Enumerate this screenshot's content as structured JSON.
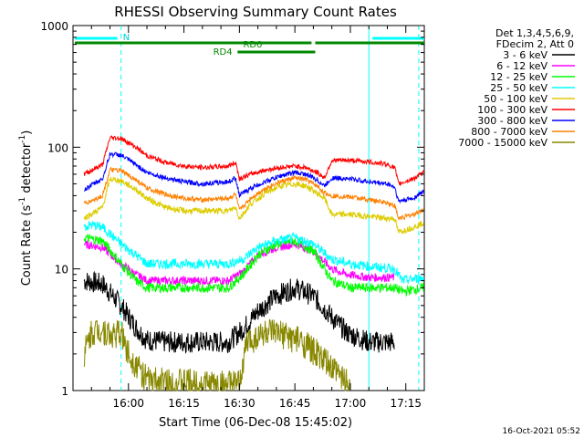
{
  "chart_data": {
    "type": "line",
    "title": "RHESSI Observing Summary Count Rates",
    "xlabel": "Start Time (06-Dec-08 15:45:02)",
    "ylabel_main": "Count Rate (s",
    "ylabel_sup1": "-1",
    "ylabel_mid": " detector",
    "ylabel_sup2": "-1",
    "ylabel_end": ")",
    "yscale": "log",
    "ylim": [
      1,
      1000
    ],
    "xlim_minutes": [
      0,
      95
    ],
    "x_ticks": [
      {
        "label": "16:00",
        "minutes": 15
      },
      {
        "label": "16:15",
        "minutes": 30
      },
      {
        "label": "16:30",
        "minutes": 45
      },
      {
        "label": "16:45",
        "minutes": 60
      },
      {
        "label": "17:00",
        "minutes": 75
      },
      {
        "label": "17:15",
        "minutes": 90
      }
    ],
    "y_ticks": [
      {
        "label": "1",
        "value": 1
      },
      {
        "label": "10",
        "value": 10
      },
      {
        "label": "100",
        "value": 100
      },
      {
        "label": "1000",
        "value": 1000
      }
    ],
    "legend_header": [
      "Det 1,3,4,5,6,9,",
      "FDecim 2, Att 0"
    ],
    "series": [
      {
        "name": "3 - 6 keV",
        "color": "#000000",
        "points": [
          [
            3,
            8
          ],
          [
            8,
            7.5
          ],
          [
            13,
            5
          ],
          [
            17,
            3.3
          ],
          [
            20,
            2.6
          ],
          [
            25,
            2.5
          ],
          [
            35,
            2.5
          ],
          [
            42,
            2.5
          ],
          [
            46,
            3.2
          ],
          [
            50,
            4.5
          ],
          [
            55,
            6
          ],
          [
            60,
            7
          ],
          [
            65,
            6
          ],
          [
            70,
            4
          ],
          [
            74,
            3
          ],
          [
            80,
            2.5
          ],
          [
            86,
            2.5
          ],
          [
            87,
            2.5
          ]
        ]
      },
      {
        "name": "6 - 12 keV",
        "color": "#ff00ff",
        "points": [
          [
            3,
            16
          ],
          [
            8,
            15
          ],
          [
            13,
            11
          ],
          [
            17,
            9
          ],
          [
            20,
            8
          ],
          [
            30,
            8
          ],
          [
            42,
            8
          ],
          [
            46,
            9.5
          ],
          [
            50,
            13
          ],
          [
            55,
            15
          ],
          [
            60,
            16
          ],
          [
            65,
            14
          ],
          [
            70,
            10
          ],
          [
            74,
            9
          ],
          [
            80,
            8.5
          ],
          [
            86,
            8.5
          ],
          [
            87,
            8.5
          ]
        ]
      },
      {
        "name": "12 - 25 keV",
        "color": "#00ff00",
        "points": [
          [
            3,
            18
          ],
          [
            8,
            17
          ],
          [
            13,
            11
          ],
          [
            17,
            8
          ],
          [
            20,
            7
          ],
          [
            30,
            7
          ],
          [
            42,
            7
          ],
          [
            46,
            9
          ],
          [
            50,
            13
          ],
          [
            55,
            16
          ],
          [
            60,
            17
          ],
          [
            65,
            14
          ],
          [
            70,
            8
          ],
          [
            75,
            7
          ],
          [
            80,
            7
          ],
          [
            87,
            7
          ],
          [
            89,
            6.5
          ],
          [
            95,
            7
          ]
        ]
      },
      {
        "name": "25 - 50 keV",
        "color": "#00ffff",
        "points": [
          [
            3,
            22
          ],
          [
            5,
            23
          ],
          [
            8,
            22
          ],
          [
            13,
            16
          ],
          [
            17,
            13
          ],
          [
            20,
            11
          ],
          [
            30,
            11
          ],
          [
            42,
            11
          ],
          [
            46,
            12
          ],
          [
            50,
            15
          ],
          [
            55,
            17
          ],
          [
            60,
            18
          ],
          [
            65,
            16
          ],
          [
            70,
            12
          ],
          [
            75,
            11
          ],
          [
            80,
            10.5
          ],
          [
            87,
            10
          ],
          [
            89,
            8
          ],
          [
            95,
            8.5
          ]
        ]
      },
      {
        "name": "50 - 100 keV",
        "color": "#ddcc00",
        "points": [
          [
            3,
            26
          ],
          [
            8,
            32
          ],
          [
            10,
            55
          ],
          [
            13,
            53
          ],
          [
            17,
            45
          ],
          [
            20,
            38
          ],
          [
            25,
            32
          ],
          [
            30,
            30
          ],
          [
            35,
            30
          ],
          [
            42,
            30
          ],
          [
            44,
            32
          ],
          [
            45,
            26
          ],
          [
            48,
            34
          ],
          [
            52,
            42
          ],
          [
            56,
            48
          ],
          [
            60,
            50
          ],
          [
            63,
            48
          ],
          [
            66,
            42
          ],
          [
            68,
            38
          ],
          [
            70,
            28
          ],
          [
            75,
            28
          ],
          [
            85,
            26
          ],
          [
            87,
            26
          ],
          [
            88,
            20
          ],
          [
            92,
            22
          ],
          [
            95,
            24
          ]
        ]
      },
      {
        "name": "100 - 300 keV",
        "color": "#ff0000",
        "points": [
          [
            3,
            60
          ],
          [
            8,
            72
          ],
          [
            10,
            120
          ],
          [
            13,
            118
          ],
          [
            17,
            100
          ],
          [
            20,
            85
          ],
          [
            25,
            75
          ],
          [
            30,
            70
          ],
          [
            35,
            68
          ],
          [
            42,
            70
          ],
          [
            44,
            75
          ],
          [
            45,
            55
          ],
          [
            48,
            60
          ],
          [
            52,
            65
          ],
          [
            56,
            68
          ],
          [
            60,
            70
          ],
          [
            63,
            68
          ],
          [
            66,
            62
          ],
          [
            68,
            56
          ],
          [
            70,
            78
          ],
          [
            75,
            78
          ],
          [
            80,
            76
          ],
          [
            85,
            72
          ],
          [
            87,
            68
          ],
          [
            88,
            50
          ],
          [
            92,
            55
          ],
          [
            95,
            62
          ]
        ]
      },
      {
        "name": "300 - 800 keV",
        "color": "#0000ff",
        "points": [
          [
            3,
            45
          ],
          [
            8,
            55
          ],
          [
            10,
            88
          ],
          [
            13,
            86
          ],
          [
            17,
            72
          ],
          [
            20,
            62
          ],
          [
            25,
            56
          ],
          [
            30,
            52
          ],
          [
            35,
            50
          ],
          [
            42,
            52
          ],
          [
            44,
            56
          ],
          [
            45,
            40
          ],
          [
            48,
            46
          ],
          [
            52,
            52
          ],
          [
            56,
            58
          ],
          [
            60,
            62
          ],
          [
            63,
            60
          ],
          [
            66,
            54
          ],
          [
            68,
            48
          ],
          [
            70,
            56
          ],
          [
            75,
            55
          ],
          [
            80,
            52
          ],
          [
            85,
            50
          ],
          [
            87,
            47
          ],
          [
            88,
            36
          ],
          [
            92,
            38
          ],
          [
            95,
            44
          ]
        ]
      },
      {
        "name": "800 - 7000 keV",
        "color": "#ff8000",
        "points": [
          [
            3,
            34
          ],
          [
            8,
            40
          ],
          [
            10,
            65
          ],
          [
            13,
            64
          ],
          [
            17,
            54
          ],
          [
            20,
            46
          ],
          [
            25,
            41
          ],
          [
            30,
            38
          ],
          [
            35,
            37
          ],
          [
            42,
            38
          ],
          [
            44,
            41
          ],
          [
            45,
            30
          ],
          [
            48,
            38
          ],
          [
            52,
            46
          ],
          [
            56,
            52
          ],
          [
            60,
            56
          ],
          [
            63,
            54
          ],
          [
            66,
            48
          ],
          [
            68,
            42
          ],
          [
            70,
            40
          ],
          [
            75,
            39
          ],
          [
            80,
            37
          ],
          [
            85,
            35
          ],
          [
            87,
            33
          ],
          [
            88,
            26
          ],
          [
            92,
            28
          ],
          [
            95,
            31
          ]
        ]
      },
      {
        "name": "7000 - 15000 keV",
        "color": "#888800",
        "points": [
          [
            3,
            2
          ],
          [
            5,
            3
          ],
          [
            8,
            3.2
          ],
          [
            10,
            2.8
          ],
          [
            13,
            3
          ],
          [
            15,
            2
          ],
          [
            18,
            1.5
          ],
          [
            20,
            1.2
          ],
          [
            45,
            1.1
          ],
          [
            47,
            2.5
          ],
          [
            52,
            3
          ],
          [
            58,
            2.8
          ],
          [
            62,
            2.5
          ],
          [
            66,
            2
          ],
          [
            70,
            1.5
          ],
          [
            74,
            1.2
          ],
          [
            75,
            1.1
          ]
        ]
      }
    ],
    "annotations": {
      "N_label": "N",
      "RD0_label": "RD0",
      "RD4_label": "RD4"
    },
    "timestamp": "16-Oct-2021 05:52"
  }
}
